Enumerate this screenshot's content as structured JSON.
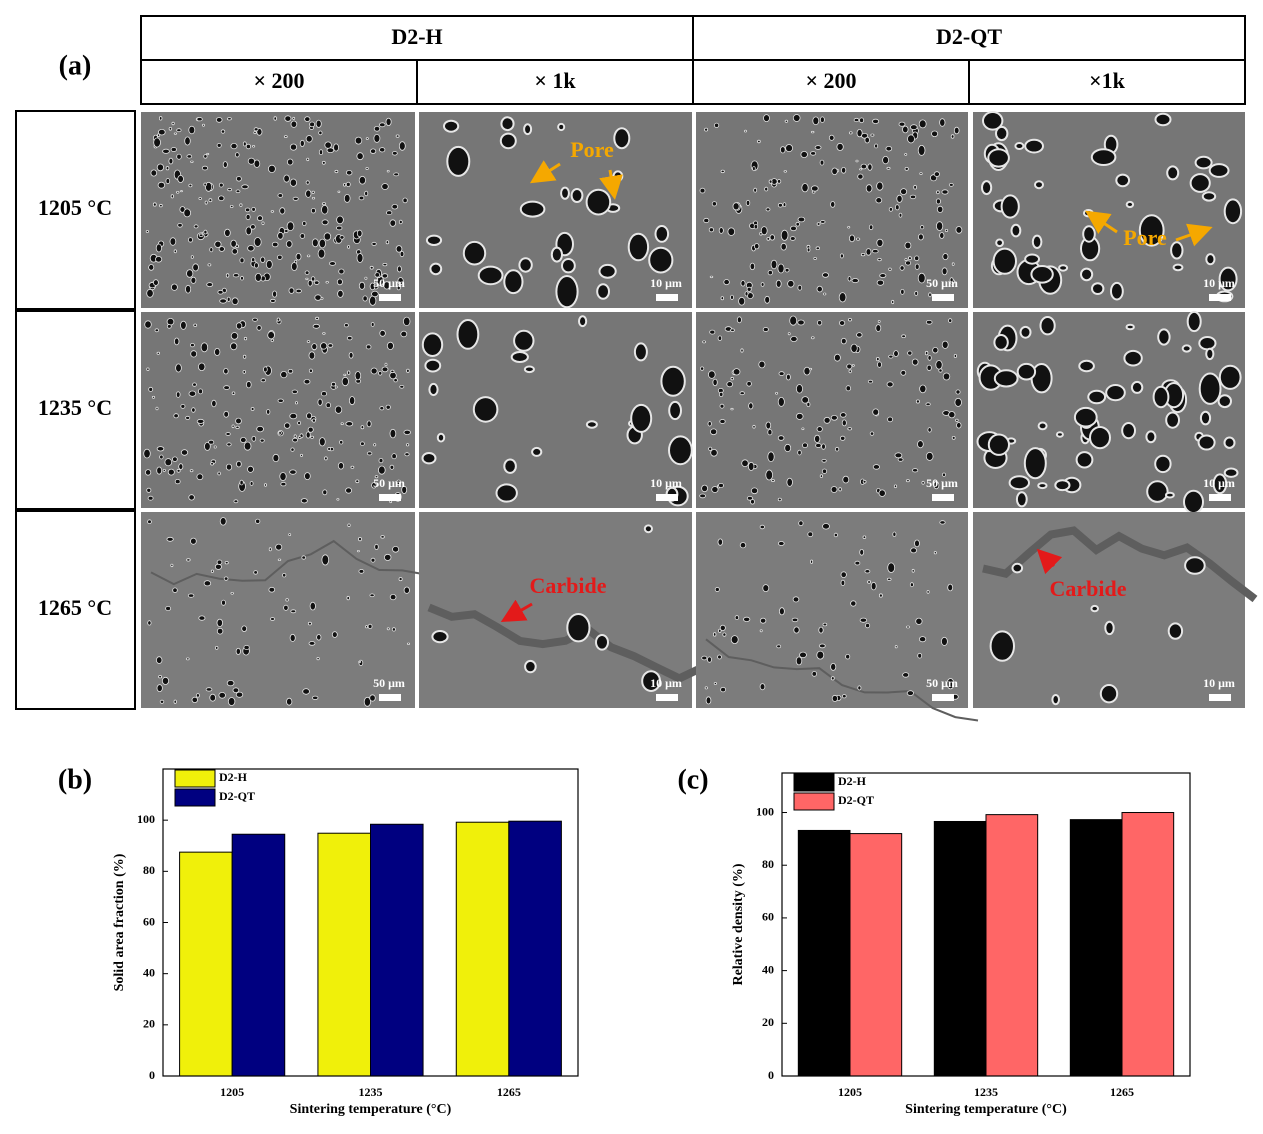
{
  "panel_a": {
    "label": "(a)",
    "groups": [
      "D2-H",
      "D2-QT"
    ],
    "magnifications": [
      "× 200",
      "× 1k",
      "× 200",
      "×1k"
    ],
    "rows": [
      "1205 °C",
      "1235 °C",
      "1265 °C"
    ],
    "scale_bars": [
      "50 μm",
      "10 μm",
      "50 μm",
      "10 μm"
    ],
    "annotations": [
      "Pore",
      "Pore",
      "Carbide",
      "Carbide"
    ]
  },
  "chart_data": [
    {
      "type": "bar",
      "panel_label": "(b)",
      "categories": [
        "1205",
        "1235",
        "1265"
      ],
      "xlabel": "Sintering temperature (°C)",
      "ylabel": "Solid area fraction (%)",
      "series": [
        {
          "name": "D2-H",
          "color": "#f0f00a",
          "values": [
            87.5,
            94.9,
            99.2
          ]
        },
        {
          "name": "D2-QT",
          "color": "#000080",
          "values": [
            94.5,
            98.4,
            99.6
          ]
        }
      ],
      "ylim": [
        0,
        120
      ],
      "yticks": [
        0,
        20,
        40,
        60,
        80,
        100
      ],
      "legend": "upper left"
    },
    {
      "type": "bar",
      "panel_label": "(c)",
      "categories": [
        "1205",
        "1235",
        "1265"
      ],
      "xlabel": "Sintering temperature (°C)",
      "ylabel": "Relative density (%)",
      "series": [
        {
          "name": "D2-H",
          "color": "#000000",
          "values": [
            93.2,
            96.6,
            97.3
          ]
        },
        {
          "name": "D2-QT",
          "color": "#ff6666",
          "values": [
            92.0,
            99.2,
            100
          ]
        }
      ],
      "ylim": [
        0,
        115
      ],
      "yticks": [
        0,
        20,
        40,
        60,
        80,
        100
      ],
      "legend": "upper left"
    }
  ]
}
